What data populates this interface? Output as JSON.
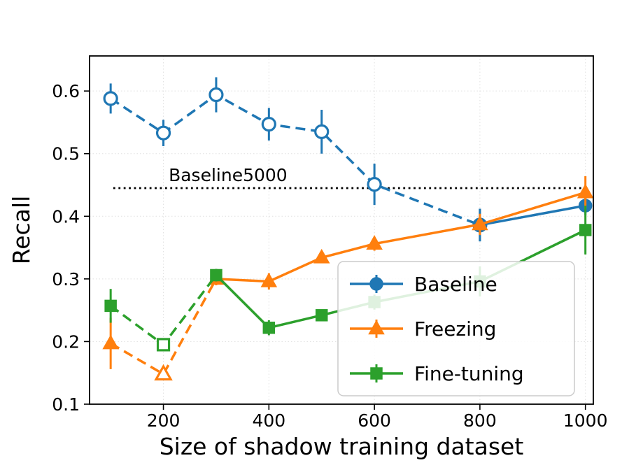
{
  "figure": {
    "background": "#ffffff"
  },
  "chart_data": {
    "type": "line",
    "title": "",
    "xlabel": "Size of shadow training dataset",
    "ylabel": "Recall",
    "xlim": [
      60,
      1015
    ],
    "ylim": [
      0.1,
      0.656
    ],
    "xticks": [
      200,
      400,
      600,
      800,
      1000
    ],
    "yticks": [
      0.1,
      0.2,
      0.3,
      0.4,
      0.5,
      0.6
    ],
    "grid": true,
    "grid_color": "#e0e0e0",
    "hline": {
      "y": 0.445,
      "x0": 105,
      "x1": 1002,
      "color": "#000000",
      "style": "dotted"
    },
    "annotation": {
      "text": "Baseline5000",
      "x": 210,
      "y": 0.456
    },
    "legend": {
      "position": "lower right",
      "entries": [
        {
          "label": "Baseline",
          "color": "#1f77b4",
          "marker": "circle"
        },
        {
          "label": "Freezing",
          "color": "#ff7f0e",
          "marker": "triangle"
        },
        {
          "label": "Fine-tuning",
          "color": "#2ca02c",
          "marker": "square"
        }
      ]
    },
    "series": [
      {
        "name": "baseline-shadow-dashed",
        "color": "#1f77b4",
        "linestyle": "dashed",
        "marker": "circle-open",
        "x": [
          100,
          200,
          300,
          400,
          500,
          600,
          800
        ],
        "y": [
          0.588,
          0.533,
          0.594,
          0.547,
          0.535,
          0.451,
          0.386
        ],
        "yerr": [
          0.024,
          0.021,
          0.028,
          0.026,
          0.035,
          0.033,
          0.026
        ]
      },
      {
        "name": "baseline-solid",
        "color": "#1f77b4",
        "linestyle": "solid",
        "marker": "circle",
        "x": [
          800,
          1000
        ],
        "y": [
          0.386,
          0.417
        ],
        "yerr": [
          0.026,
          0.015
        ]
      },
      {
        "name": "freezing-dashed",
        "color": "#ff7f0e",
        "linestyle": "dashed",
        "marker": "triangle",
        "markers": [
          "triangle",
          "triangle-open",
          "none"
        ],
        "x": [
          100,
          200,
          300
        ],
        "y": [
          0.197,
          0.148,
          0.3
        ],
        "yerr": [
          0.041,
          0.006,
          0.01
        ]
      },
      {
        "name": "freezing-solid",
        "color": "#ff7f0e",
        "linestyle": "solid",
        "marker": "triangle",
        "x": [
          300,
          400,
          500,
          600,
          800,
          1000
        ],
        "y": [
          0.3,
          0.296,
          0.334,
          0.356,
          0.387,
          0.438
        ],
        "yerr": [
          0.01,
          0.013,
          0.009,
          0.011,
          0.017,
          0.026
        ]
      },
      {
        "name": "fine-tuning-dashed",
        "color": "#2ca02c",
        "linestyle": "dashed",
        "marker": "square",
        "markers": [
          "square",
          "square-open",
          "none"
        ],
        "x": [
          100,
          200,
          300
        ],
        "y": [
          0.257,
          0.195,
          0.306
        ],
        "yerr": [
          0.027,
          0.009,
          0.01
        ]
      },
      {
        "name": "fine-tuning-solid",
        "color": "#2ca02c",
        "linestyle": "solid",
        "marker": "square",
        "x": [
          300,
          400,
          500,
          600,
          800,
          1000
        ],
        "y": [
          0.306,
          0.222,
          0.242,
          0.263,
          0.296,
          0.378
        ],
        "yerr": [
          0.01,
          0.012,
          0.009,
          0.012,
          0.024,
          0.039
        ]
      }
    ]
  }
}
